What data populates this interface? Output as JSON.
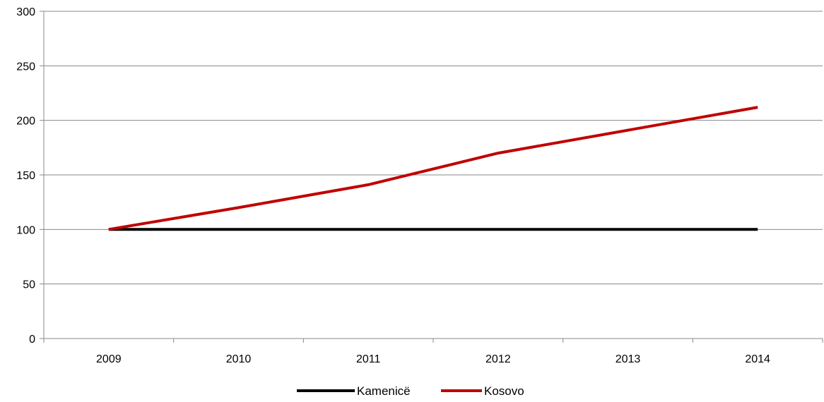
{
  "chart_data": {
    "type": "line",
    "title": "",
    "xlabel": "",
    "ylabel": "",
    "categories": [
      "2009",
      "2010",
      "2011",
      "2012",
      "2013",
      "2014"
    ],
    "ylim": [
      0,
      300
    ],
    "yticks": [
      0,
      50,
      100,
      150,
      200,
      250,
      300
    ],
    "grid": "horizontal",
    "legend_position": "bottom",
    "series": [
      {
        "name": "Kamenicë",
        "color": "#000000",
        "values": [
          100,
          100,
          100,
          100,
          100,
          100
        ]
      },
      {
        "name": "Kosovo",
        "color": "#c00000",
        "values": [
          100,
          120,
          141,
          170,
          191,
          212
        ]
      }
    ]
  }
}
